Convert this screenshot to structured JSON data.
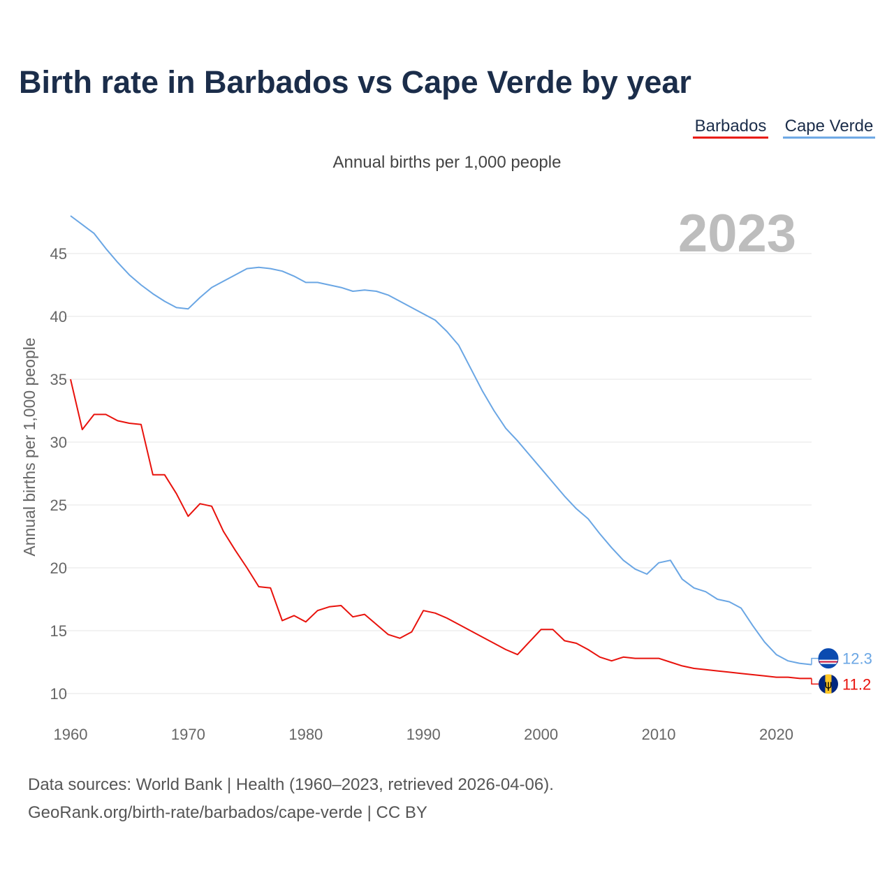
{
  "title": "Birth rate in Barbados vs Cape Verde by year",
  "subtitle": "Annual births per 1,000 people",
  "current_year": "2023",
  "footer": {
    "line1": "Data sources: World Bank | Health (1960–2023, retrieved 2026-04-06).",
    "line2": "GeoRank.org/birth-rate/barbados/cape-verde | CC BY"
  },
  "colors": {
    "barbados": "#e8120c",
    "cape_verde": "#6aa6e4",
    "title": "#1b2d4a"
  },
  "chart_data": {
    "type": "line",
    "title": "Birth rate in Barbados vs Cape Verde by year",
    "subtitle": "Annual births per 1,000 people",
    "xlabel": "",
    "ylabel": "Annual births per 1,000 people",
    "xlim": [
      1960,
      2023
    ],
    "ylim": [
      10,
      48
    ],
    "x_ticks": [
      1960,
      1970,
      1980,
      1990,
      2000,
      2010,
      2020
    ],
    "y_ticks": [
      10,
      15,
      20,
      25,
      30,
      35,
      40,
      45
    ],
    "legend": [
      "Barbados",
      "Cape Verde"
    ],
    "x": [
      1960,
      1961,
      1962,
      1963,
      1964,
      1965,
      1966,
      1967,
      1968,
      1969,
      1970,
      1971,
      1972,
      1973,
      1974,
      1975,
      1976,
      1977,
      1978,
      1979,
      1980,
      1981,
      1982,
      1983,
      1984,
      1985,
      1986,
      1987,
      1988,
      1989,
      1990,
      1991,
      1992,
      1993,
      1994,
      1995,
      1996,
      1997,
      1998,
      1999,
      2000,
      2001,
      2002,
      2003,
      2004,
      2005,
      2006,
      2007,
      2008,
      2009,
      2010,
      2011,
      2012,
      2013,
      2014,
      2015,
      2016,
      2017,
      2018,
      2019,
      2020,
      2021,
      2022,
      2023
    ],
    "series": [
      {
        "name": "Barbados",
        "end_label": "11.2",
        "flag_icon": "barbados-flag-icon",
        "values": [
          35.0,
          31.0,
          32.2,
          32.2,
          31.7,
          31.5,
          31.4,
          27.4,
          27.4,
          25.9,
          24.1,
          25.1,
          24.9,
          22.9,
          21.4,
          20.0,
          18.5,
          18.4,
          15.8,
          16.2,
          15.7,
          16.6,
          16.9,
          17.0,
          16.1,
          16.3,
          15.5,
          14.7,
          14.4,
          14.9,
          16.6,
          16.4,
          16.0,
          15.5,
          15.0,
          14.5,
          14.0,
          13.5,
          13.1,
          14.1,
          15.1,
          15.1,
          14.2,
          14.0,
          13.5,
          12.9,
          12.6,
          12.9,
          12.8,
          12.8,
          12.8,
          12.5,
          12.2,
          12.0,
          11.9,
          11.8,
          11.7,
          11.6,
          11.5,
          11.4,
          11.3,
          11.3,
          11.2,
          11.2
        ]
      },
      {
        "name": "Cape Verde",
        "end_label": "12.3",
        "flag_icon": "cape-verde-flag-icon",
        "values": [
          48.0,
          47.3,
          46.6,
          45.4,
          44.3,
          43.3,
          42.5,
          41.8,
          41.2,
          40.7,
          40.6,
          41.5,
          42.3,
          42.8,
          43.3,
          43.8,
          43.9,
          43.8,
          43.6,
          43.2,
          42.7,
          42.7,
          42.5,
          42.3,
          42.0,
          42.1,
          42.0,
          41.7,
          41.2,
          40.7,
          40.2,
          39.7,
          38.8,
          37.7,
          35.9,
          34.1,
          32.5,
          31.1,
          30.1,
          29.0,
          27.9,
          26.8,
          25.7,
          24.7,
          23.9,
          22.7,
          21.6,
          20.6,
          19.9,
          19.5,
          20.4,
          20.6,
          19.1,
          18.4,
          18.1,
          17.5,
          17.3,
          16.8,
          15.4,
          14.1,
          13.1,
          12.6,
          12.4,
          12.3
        ]
      }
    ]
  }
}
